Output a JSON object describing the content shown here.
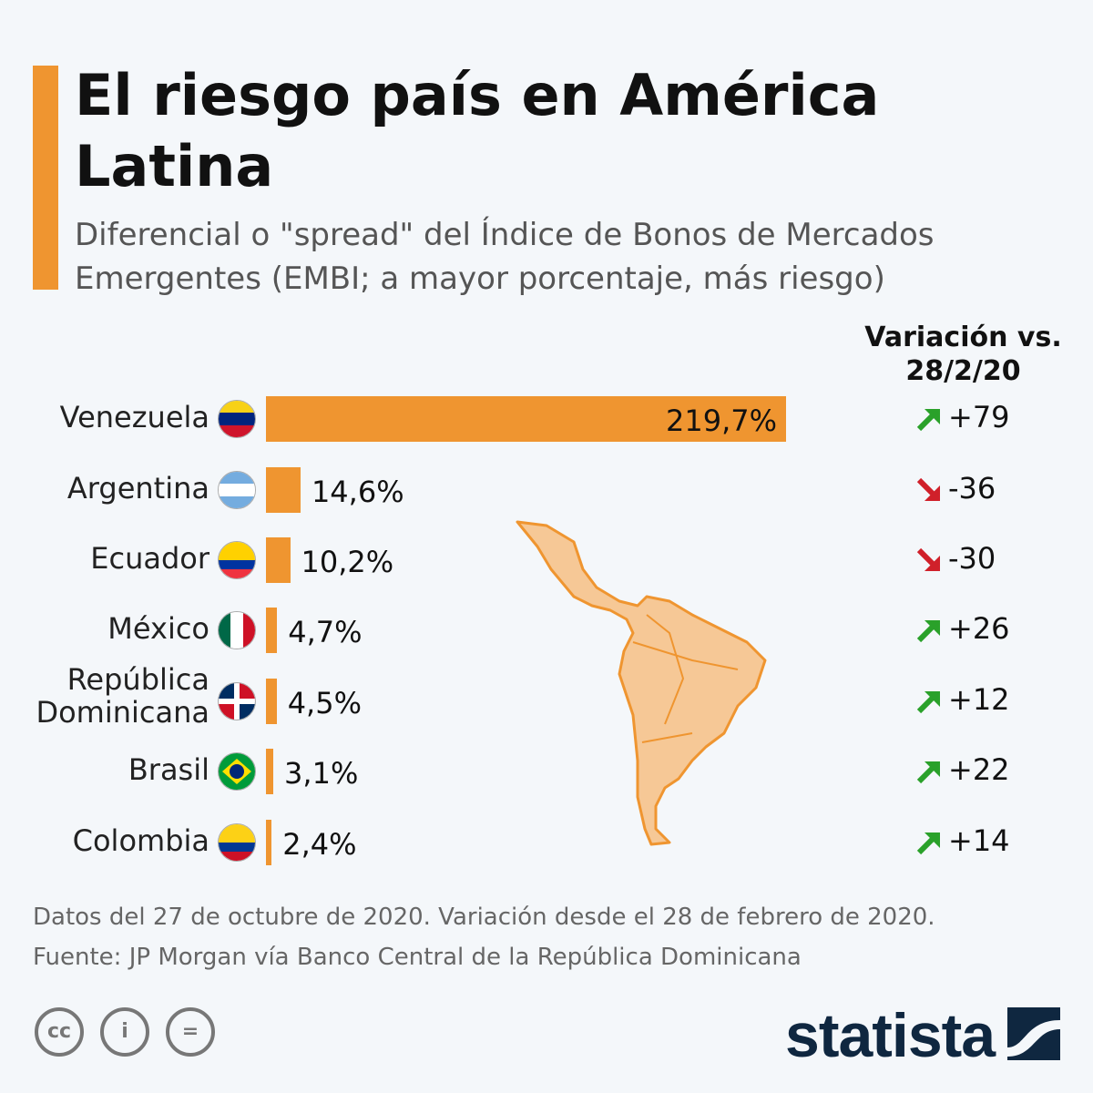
{
  "title": "El riesgo país en América Latina",
  "subtitle": "Diferencial o \"spread\" del Índice de Bonos de Mercados Emergentes (EMBI; a mayor porcentaje, más riesgo)",
  "chart_data": {
    "type": "bar",
    "orientation": "horizontal",
    "title": "El riesgo país en América Latina",
    "categories": [
      "Venezuela",
      "Argentina",
      "Ecuador",
      "México",
      "República Dominicana",
      "Brasil",
      "Colombia"
    ],
    "values": [
      219.7,
      14.6,
      10.2,
      4.7,
      4.5,
      3.1,
      2.4
    ],
    "value_labels": [
      "219,7%",
      "14,6%",
      "10,2%",
      "4,7%",
      "4,5%",
      "3,1%",
      "2,4%"
    ],
    "unit": "%",
    "variation_header": "Variación vs. 28/2/20",
    "variation": [
      79,
      -36,
      -30,
      26,
      12,
      22,
      14
    ],
    "variation_labels": [
      "+79",
      "-36",
      "-30",
      "+26",
      "+12",
      "+22",
      "+14"
    ],
    "bar_color": "#ef9530",
    "up_color": "#2aa12a",
    "down_color": "#d0202a"
  },
  "rows": [
    {
      "label": "Venezuela",
      "flag": "venezuela-flag-icon",
      "value": "219,7%",
      "change": "+79"
    },
    {
      "label": "Argentina",
      "flag": "argentina-flag-icon",
      "value": "14,6%",
      "change": "-36"
    },
    {
      "label": "Ecuador",
      "flag": "ecuador-flag-icon",
      "value": "10,2%",
      "change": "-30"
    },
    {
      "label": "México",
      "flag": "mexico-flag-icon",
      "value": "4,7%",
      "change": "+26"
    },
    {
      "label": "República Dominicana",
      "flag": "dominican-republic-flag-icon",
      "value": "4,5%",
      "change": "+12"
    },
    {
      "label": "Brasil",
      "flag": "brazil-flag-icon",
      "value": "3,1%",
      "change": "+22"
    },
    {
      "label": "Colombia",
      "flag": "colombia-flag-icon",
      "value": "2,4%",
      "change": "+14"
    }
  ],
  "footer": {
    "note": "Datos del 27 de octubre de 2020. Variación desde el 28 de febrero de 2020.",
    "source": "Fuente: JP Morgan vía Banco Central de la República Dominicana"
  },
  "brand": "statista"
}
